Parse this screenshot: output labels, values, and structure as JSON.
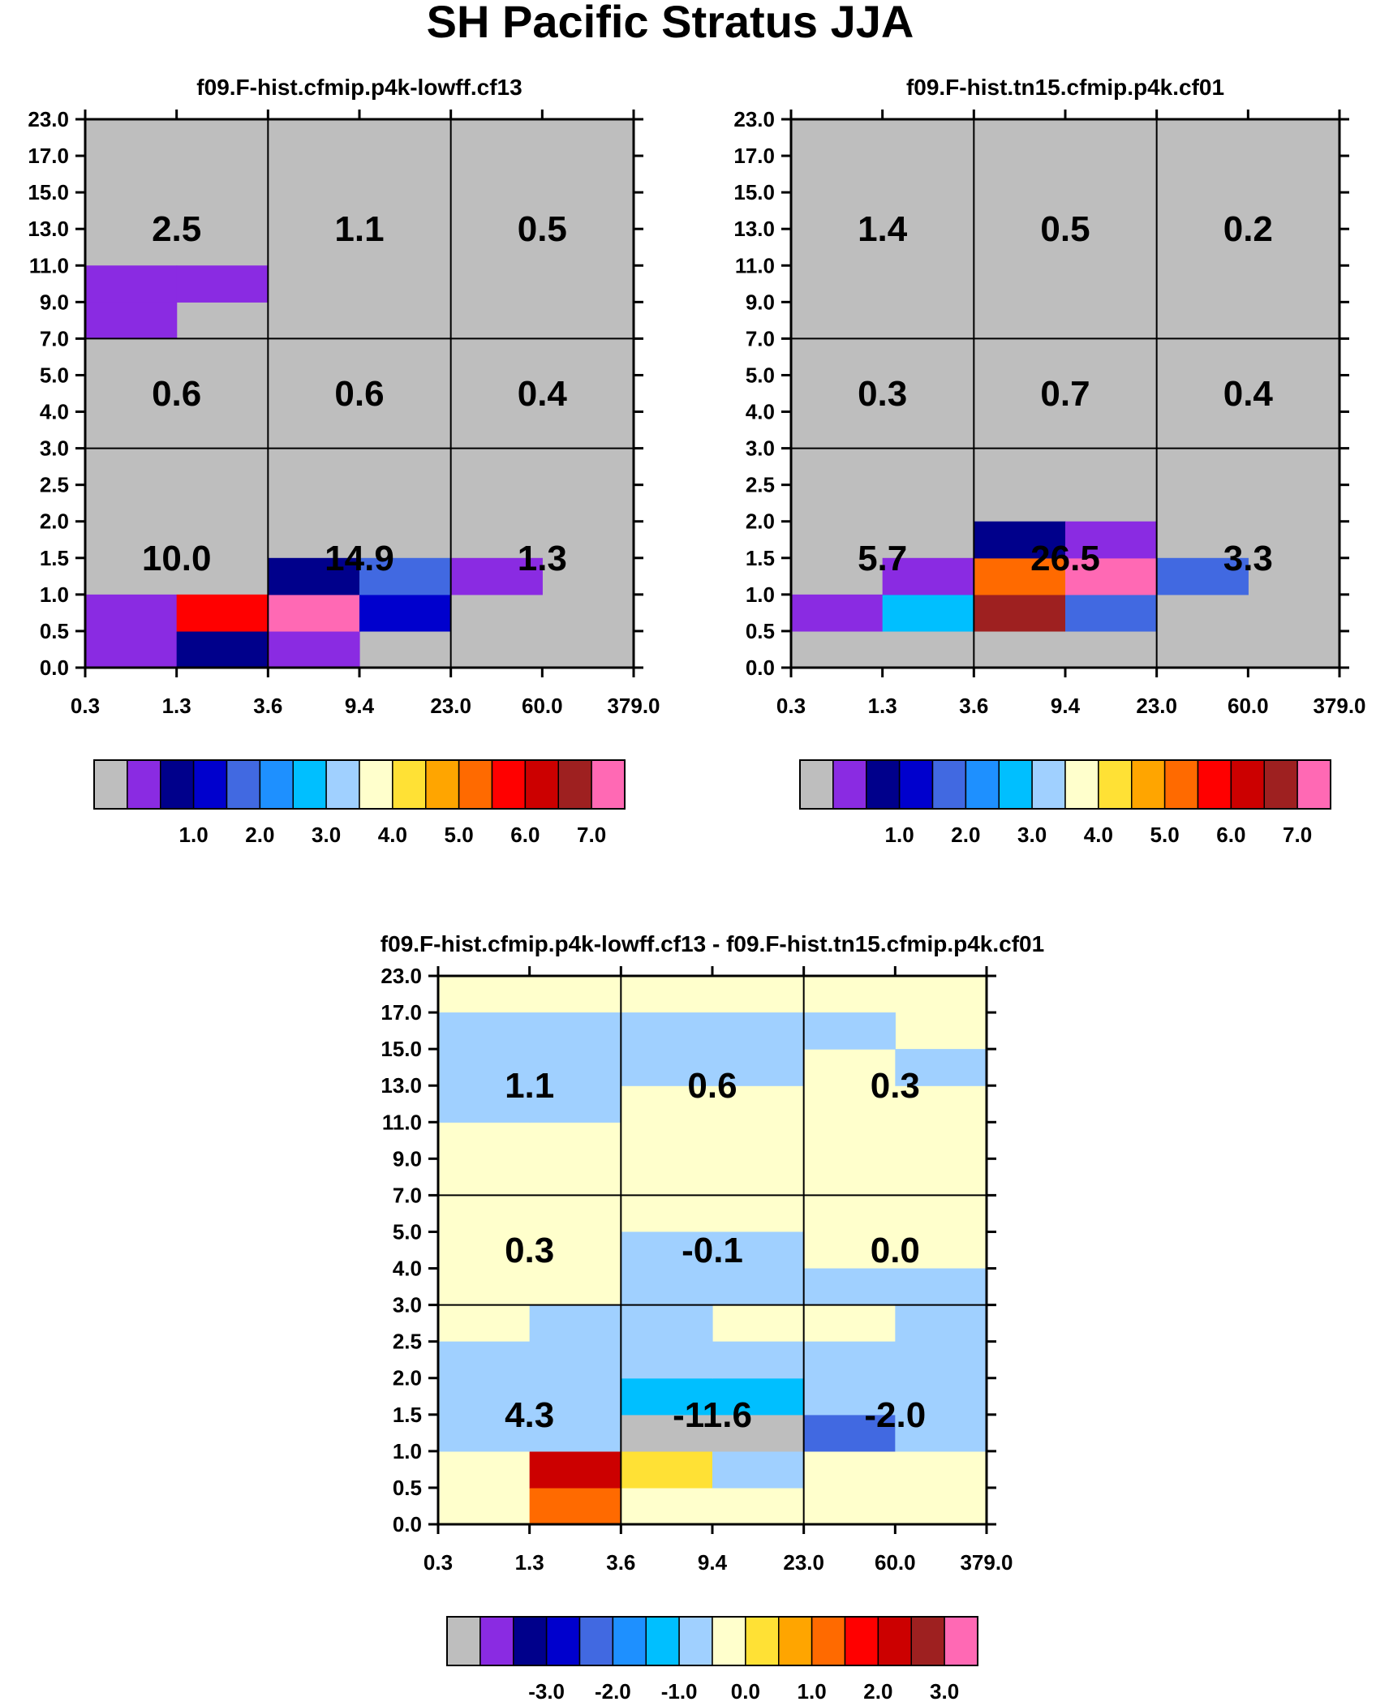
{
  "title": "SH Pacific Stratus JJA",
  "colors": {
    "background": "#ffffff",
    "grid": "#000000",
    "fill_default_abs": "#bebebe",
    "fill_default_diff": "#ffffcc"
  },
  "palette": [
    "#bebebe",
    "#8a2be2",
    "#00008b",
    "#0000cd",
    "#4169e1",
    "#1e90ff",
    "#00bfff",
    "#a0d0ff",
    "#ffffcc",
    "#ffe135",
    "#ffa500",
    "#ff6a00",
    "#ff0000",
    "#cc0000",
    "#9e2020",
    "#ff69b4"
  ],
  "chart_data": [
    {
      "type": "heatmap",
      "title": "f09.F-hist.cfmip.p4k-lowff.cf13",
      "x_ticks": [
        "0.3",
        "1.3",
        "3.6",
        "9.4",
        "23.0",
        "60.0",
        "379.0"
      ],
      "y_ticks": [
        "0.0",
        "0.5",
        "1.0",
        "1.5",
        "2.0",
        "2.5",
        "3.0",
        "4.0",
        "5.0",
        "7.0",
        "9.0",
        "11.0",
        "13.0",
        "15.0",
        "17.0",
        "23.0"
      ],
      "default_color_index": 0,
      "cells": [
        [
          0,
          0,
          1
        ],
        [
          1,
          0,
          2
        ],
        [
          2,
          0,
          1
        ],
        [
          0,
          1,
          1
        ],
        [
          1,
          1,
          12
        ],
        [
          2,
          1,
          15
        ],
        [
          3,
          1,
          3
        ],
        [
          2,
          2,
          2
        ],
        [
          3,
          2,
          4
        ],
        [
          4,
          2,
          1
        ],
        [
          0,
          9,
          1
        ],
        [
          0,
          10,
          1
        ],
        [
          1,
          10,
          1
        ]
      ],
      "block_values": [
        "10.0",
        "14.9",
        "1.3",
        "0.6",
        "0.6",
        "0.4",
        "2.5",
        "1.1",
        "0.5"
      ],
      "colorbar_labels": [
        "1.0",
        "2.0",
        "3.0",
        "4.0",
        "5.0",
        "6.0",
        "7.0"
      ]
    },
    {
      "type": "heatmap",
      "title": "f09.F-hist.tn15.cfmip.p4k.cf01",
      "x_ticks": [
        "0.3",
        "1.3",
        "3.6",
        "9.4",
        "23.0",
        "60.0",
        "379.0"
      ],
      "y_ticks": [
        "0.0",
        "0.5",
        "1.0",
        "1.5",
        "2.0",
        "2.5",
        "3.0",
        "4.0",
        "5.0",
        "7.0",
        "9.0",
        "11.0",
        "13.0",
        "15.0",
        "17.0",
        "23.0"
      ],
      "default_color_index": 0,
      "cells": [
        [
          0,
          1,
          1
        ],
        [
          1,
          1,
          6
        ],
        [
          2,
          1,
          14
        ],
        [
          3,
          1,
          4
        ],
        [
          1,
          2,
          1
        ],
        [
          2,
          2,
          11
        ],
        [
          3,
          2,
          15
        ],
        [
          4,
          2,
          4
        ],
        [
          2,
          3,
          2
        ],
        [
          3,
          3,
          1
        ]
      ],
      "block_values": [
        "5.7",
        "26.5",
        "3.3",
        "0.3",
        "0.7",
        "0.4",
        "1.4",
        "0.5",
        "0.2"
      ],
      "colorbar_labels": [
        "1.0",
        "2.0",
        "3.0",
        "4.0",
        "5.0",
        "6.0",
        "7.0"
      ]
    },
    {
      "type": "heatmap",
      "title": "f09.F-hist.cfmip.p4k-lowff.cf13 - f09.F-hist.tn15.cfmip.p4k.cf01",
      "x_ticks": [
        "0.3",
        "1.3",
        "3.6",
        "9.4",
        "23.0",
        "60.0",
        "379.0"
      ],
      "y_ticks": [
        "0.0",
        "0.5",
        "1.0",
        "1.5",
        "2.0",
        "2.5",
        "3.0",
        "4.0",
        "5.0",
        "7.0",
        "9.0",
        "11.0",
        "13.0",
        "15.0",
        "17.0",
        "23.0"
      ],
      "default_color_index": 8,
      "cells": [
        [
          1,
          0,
          11
        ],
        [
          1,
          1,
          13
        ],
        [
          2,
          1,
          9
        ],
        [
          3,
          1,
          7
        ],
        [
          0,
          2,
          7
        ],
        [
          1,
          2,
          7
        ],
        [
          2,
          2,
          0
        ],
        [
          3,
          2,
          0
        ],
        [
          4,
          2,
          4
        ],
        [
          5,
          2,
          7
        ],
        [
          0,
          3,
          7
        ],
        [
          1,
          3,
          7
        ],
        [
          2,
          3,
          6
        ],
        [
          3,
          3,
          6
        ],
        [
          4,
          3,
          7
        ],
        [
          5,
          3,
          7
        ],
        [
          0,
          4,
          7
        ],
        [
          1,
          4,
          7
        ],
        [
          2,
          4,
          7
        ],
        [
          3,
          4,
          7
        ],
        [
          4,
          4,
          7
        ],
        [
          5,
          4,
          7
        ],
        [
          1,
          5,
          7
        ],
        [
          2,
          5,
          7
        ],
        [
          5,
          5,
          7
        ],
        [
          2,
          6,
          7
        ],
        [
          3,
          6,
          7
        ],
        [
          4,
          6,
          7
        ],
        [
          5,
          6,
          7
        ],
        [
          2,
          7,
          7
        ],
        [
          3,
          7,
          7
        ],
        [
          0,
          11,
          7
        ],
        [
          1,
          11,
          7
        ],
        [
          0,
          12,
          7
        ],
        [
          1,
          12,
          7
        ],
        [
          2,
          12,
          7
        ],
        [
          3,
          12,
          7
        ],
        [
          5,
          12,
          7
        ],
        [
          0,
          13,
          7
        ],
        [
          1,
          13,
          7
        ],
        [
          2,
          13,
          7
        ],
        [
          3,
          13,
          7
        ],
        [
          4,
          13,
          7
        ]
      ],
      "block_values": [
        "4.3",
        "-11.6",
        "-2.0",
        "0.3",
        "-0.1",
        "0.0",
        "1.1",
        "0.6",
        "0.3"
      ],
      "colorbar_labels": [
        "-3.0",
        "-2.0",
        "-1.0",
        "0.0",
        "1.0",
        "2.0",
        "3.0"
      ]
    }
  ]
}
